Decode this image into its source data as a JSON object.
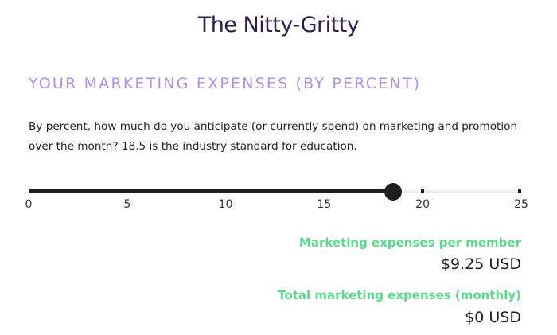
{
  "page": {
    "title": "The Nitty-Gritty"
  },
  "section": {
    "heading": "YOUR MARKETING EXPENSES (BY PERCENT)",
    "description": "By percent, how much do you anticipate (or currently spend) on marketing and promotion over the month? 18.5 is the industry standard for education."
  },
  "slider": {
    "min": 0,
    "max": 25,
    "value": 18.5,
    "tick_marks": [
      20,
      25
    ],
    "tick_labels": [
      "0",
      "5",
      "10",
      "15",
      "20",
      "25"
    ],
    "colors": {
      "fill": "#1e1e1e",
      "track": "#eeeeee"
    }
  },
  "results": {
    "per_member_label": "Marketing expenses per member",
    "per_member_value": "$9.25 USD",
    "total_label": "Total marketing expenses (monthly)",
    "total_value": "$0 USD"
  },
  "colors": {
    "title": "#2c1b4d",
    "heading": "#ab93df",
    "result_label": "#5dd98d"
  }
}
